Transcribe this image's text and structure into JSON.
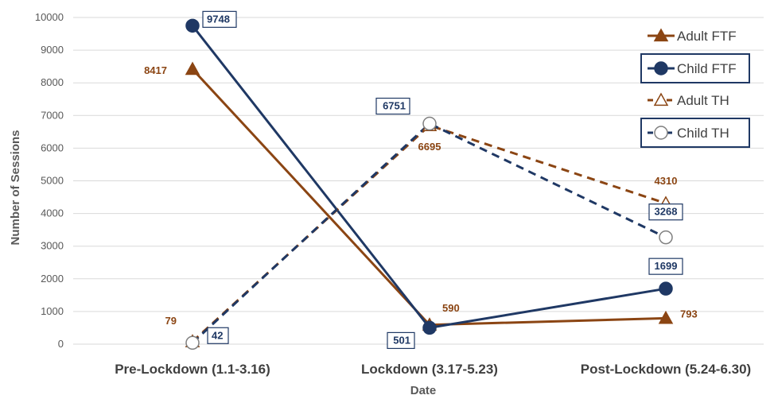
{
  "chart_data": {
    "type": "line",
    "title": "",
    "xlabel": "Date",
    "ylabel": "Number of Sessions",
    "ylim": [
      0,
      10000
    ],
    "y_ticks": [
      0,
      1000,
      2000,
      3000,
      4000,
      5000,
      6000,
      7000,
      8000,
      9000,
      10000
    ],
    "categories": [
      "Pre-Lockdown (1.1-3.16)",
      "Lockdown (3.17-5.23)",
      "Post-Lockdown (5.24-6.30)"
    ],
    "grid": true,
    "legend_position": "top-right",
    "series": [
      {
        "name": "Adult FTF",
        "values": [
          8417,
          590,
          793
        ],
        "color": "#8B4513",
        "line": "solid",
        "marker": "filled-triangle",
        "label_boxed": false
      },
      {
        "name": "Child FTF",
        "values": [
          9748,
          501,
          1699
        ],
        "color": "#1F3864",
        "line": "solid",
        "marker": "filled-circle",
        "label_boxed": true
      },
      {
        "name": "Adult TH",
        "values": [
          79,
          6695,
          4310
        ],
        "color": "#8B4513",
        "line": "dashed",
        "marker": "hollow-triangle",
        "label_boxed": false
      },
      {
        "name": "Child TH",
        "values": [
          42,
          6751,
          3268
        ],
        "color": "#1F3864",
        "line": "dashed",
        "marker": "hollow-circle",
        "label_boxed": true
      }
    ]
  }
}
